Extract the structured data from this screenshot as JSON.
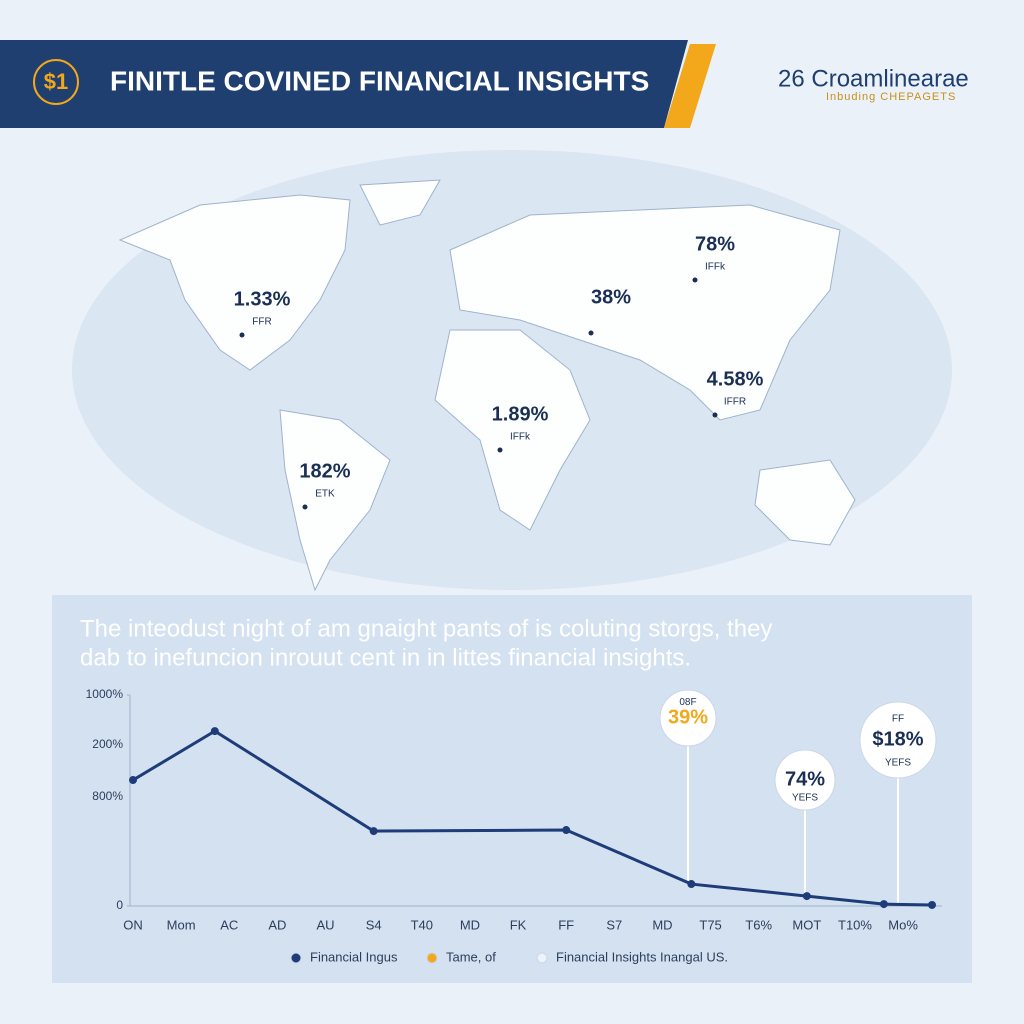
{
  "header": {
    "badge": "$1",
    "title": "FINITLE COVINED FINANCIAL INSIGHTS",
    "brand": "26 Croamlinearae",
    "brand_sub": "Inbuding CHEPAGETS"
  },
  "map": {
    "labels": [
      {
        "value": "1.33%",
        "sub": "FFR"
      },
      {
        "value": "78%",
        "sub": "IFFk"
      },
      {
        "value": "38%",
        "sub": ""
      },
      {
        "value": "4.58%",
        "sub": "IFFR"
      },
      {
        "value": "1.89%",
        "sub": "IFFk"
      },
      {
        "value": "182%",
        "sub": "ETK"
      }
    ]
  },
  "intro": [
    "The inteodust night of am gnaight pants of is coluting storgs, they",
    "dab to inefuncion inrouut cent in in littes financial insights."
  ],
  "chart_data": {
    "type": "line",
    "categories": [
      "ON",
      "Mom",
      "AC",
      "AD",
      "AU",
      "S4",
      "T40",
      "MD",
      "FK",
      "FF",
      "S7",
      "MD",
      "T75",
      "T6%",
      "MOT",
      "T10%",
      "Mo%"
    ],
    "xlim": [
      0,
      16.6
    ],
    "ylim": [
      0,
      1000
    ],
    "yticks": [
      0,
      {
        "value": 1000,
        "label": "1000%"
      }
    ],
    "extra_y_labels": [
      "200%",
      "800%"
    ],
    "series": [
      {
        "name": "Financial Ingus",
        "color": "#1d3c78",
        "x": [
          0,
          1.7,
          5,
          9,
          11.6,
          14,
          15.6,
          16.6
        ],
        "values": [
          597,
          829,
          355,
          360,
          104,
          47,
          9,
          5
        ]
      }
    ],
    "annotations": [
      {
        "top": "08F",
        "text": "39%"
      },
      {
        "top": "",
        "text": "74%",
        "bottom": "YEFS"
      },
      {
        "top": "FF",
        "text": "$18%",
        "bottom": "YEFS"
      }
    ],
    "legend_extra": [
      {
        "name": "Tame, of",
        "color": "#f3a81c"
      },
      {
        "name": "Financial Insights Inangal US.",
        "color": "#eef3fa"
      }
    ]
  }
}
